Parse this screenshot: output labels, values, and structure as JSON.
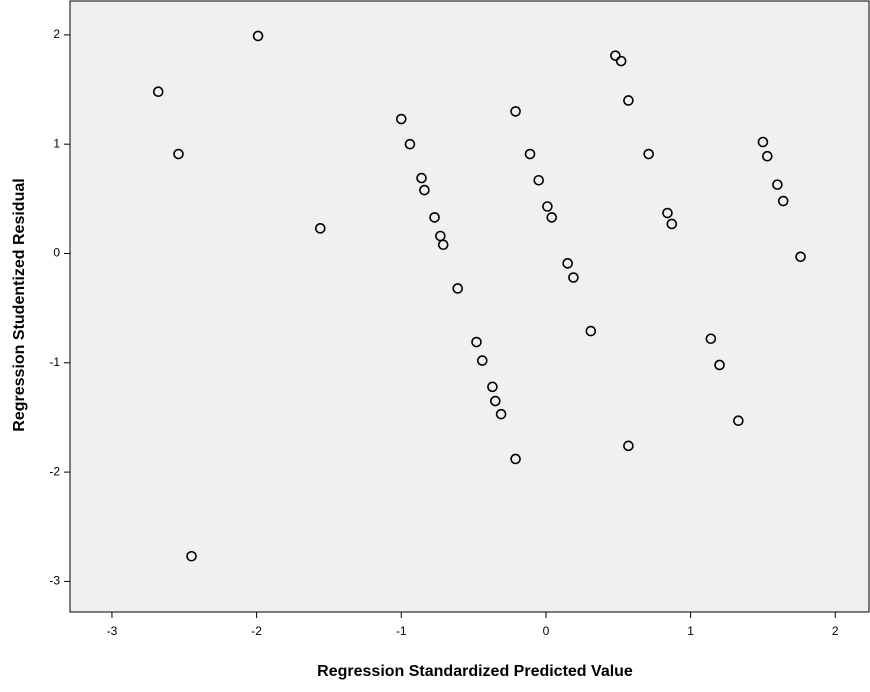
{
  "chart_data": {
    "type": "scatter",
    "xlabel": "Regression Standardized Predicted Value",
    "ylabel": "Regression Studentized Residual",
    "xlim": [
      -3.29,
      2.24
    ],
    "ylim": [
      -3.28,
      2.31
    ],
    "xticks": [
      -3,
      -2,
      -1,
      0,
      1,
      2
    ],
    "yticks": [
      -3,
      -2,
      -1,
      0,
      1,
      2
    ],
    "color": "#000000",
    "x": [
      -2.68,
      -2.54,
      -2.45,
      -1.99,
      -1.56,
      -1.0,
      -0.94,
      -0.86,
      -0.84,
      -0.77,
      -0.73,
      -0.71,
      -0.61,
      -0.48,
      -0.44,
      -0.37,
      -0.35,
      -0.31,
      -0.21,
      -0.21,
      -0.11,
      -0.05,
      0.01,
      0.04,
      0.15,
      0.19,
      0.31,
      0.48,
      0.52,
      0.57,
      0.57,
      0.71,
      0.84,
      0.87,
      1.14,
      1.2,
      1.33,
      1.5,
      1.53,
      1.6,
      1.64,
      1.76
    ],
    "values": [
      1.48,
      0.91,
      -2.77,
      1.99,
      0.23,
      1.23,
      1.0,
      0.69,
      0.58,
      0.33,
      0.16,
      0.08,
      -0.32,
      -0.81,
      -0.98,
      -1.22,
      -1.35,
      -1.47,
      1.3,
      -1.88,
      0.91,
      0.67,
      0.43,
      0.33,
      -0.09,
      -0.22,
      -0.71,
      1.81,
      1.76,
      1.4,
      -1.76,
      0.91,
      0.37,
      0.27,
      -0.78,
      -1.02,
      -1.53,
      1.02,
      0.89,
      0.63,
      0.48,
      -0.03
    ]
  }
}
